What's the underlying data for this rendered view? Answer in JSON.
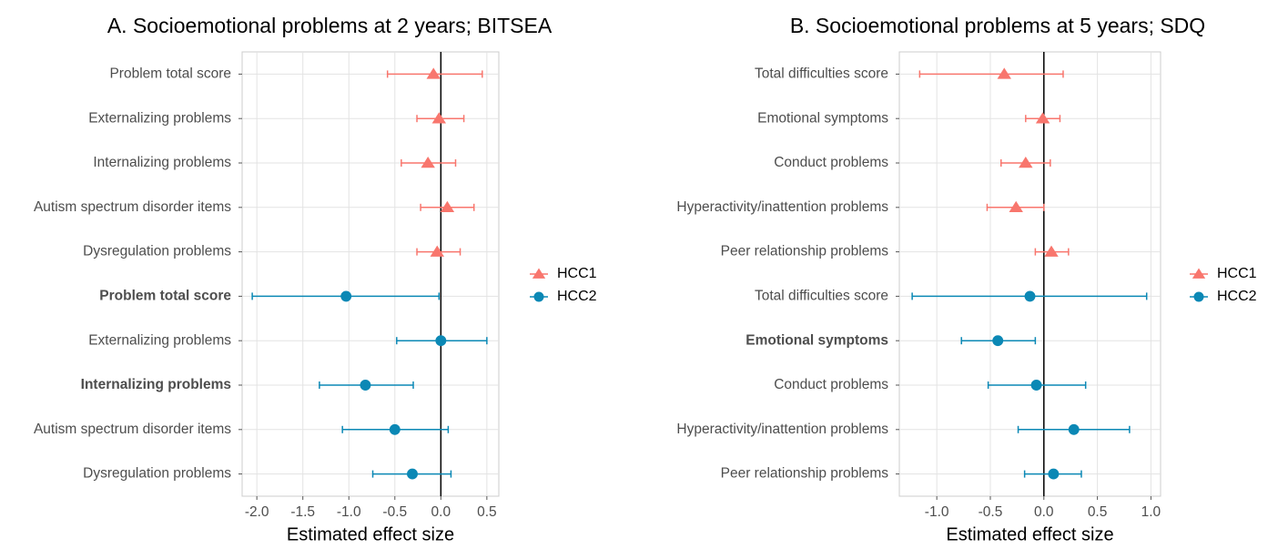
{
  "chart_data": [
    {
      "type": "forest",
      "title": "A. Socioemotional problems at 2 years; BITSEA",
      "x_label": "Estimated effect size",
      "categories": [
        "Problem total score",
        "Externalizing problems",
        "Internalizing problems",
        "Autism spectrum disorder items",
        "Dysregulation problems",
        "Problem total score",
        "Externalizing problems",
        "Internalizing problems",
        "Autism spectrum disorder items",
        "Dysregulation problems"
      ],
      "bold": [
        false,
        false,
        false,
        false,
        false,
        true,
        false,
        true,
        false,
        false
      ],
      "series": [
        {
          "name": "HCC1",
          "color": "#f8766d",
          "marker": "triangle",
          "values": [
            -0.08,
            -0.02,
            -0.14,
            0.07,
            -0.04,
            null,
            null,
            null,
            null,
            null
          ],
          "lower": [
            -0.58,
            -0.26,
            -0.43,
            -0.22,
            -0.26,
            null,
            null,
            null,
            null,
            null
          ],
          "upper": [
            0.45,
            0.25,
            0.16,
            0.36,
            0.21,
            null,
            null,
            null,
            null,
            null
          ]
        },
        {
          "name": "HCC2",
          "color": "#0b88b5",
          "marker": "circle",
          "values": [
            null,
            null,
            null,
            null,
            null,
            -1.03,
            0.0,
            -0.82,
            -0.5,
            -0.31
          ],
          "lower": [
            null,
            null,
            null,
            null,
            null,
            -2.05,
            -0.48,
            -1.32,
            -1.07,
            -0.74
          ],
          "upper": [
            null,
            null,
            null,
            null,
            null,
            -0.02,
            0.5,
            -0.3,
            0.08,
            0.11
          ]
        }
      ],
      "xlim": [
        -2.16,
        0.63
      ],
      "xticks": [
        {
          "value": -2,
          "label": "-2.0"
        },
        -1.5,
        {
          "value": -1,
          "label": "-1.0"
        },
        -0.5,
        {
          "value": 0,
          "label": "0.0"
        },
        0.5
      ],
      "reference_line": 0,
      "grid": true,
      "legend": "right"
    },
    {
      "type": "forest",
      "title": "B. Socioemotional problems at 5 years; SDQ",
      "x_label": "Estimated effect size",
      "categories": [
        "Total difficulties score",
        "Emotional symptoms",
        "Conduct problems",
        "Hyperactivity/inattention problems",
        "Peer relationship problems",
        "Total difficulties score",
        "Emotional symptoms",
        "Conduct problems",
        "Hyperactivity/inattention problems",
        "Peer relationship problems"
      ],
      "bold": [
        false,
        false,
        false,
        false,
        false,
        false,
        true,
        false,
        false,
        false
      ],
      "series": [
        {
          "name": "HCC1",
          "color": "#f8766d",
          "marker": "triangle",
          "values": [
            -0.37,
            -0.01,
            -0.17,
            -0.26,
            0.07,
            null,
            null,
            null,
            null,
            null
          ],
          "lower": [
            -1.16,
            -0.17,
            -0.4,
            -0.53,
            -0.08,
            null,
            null,
            null,
            null,
            null
          ],
          "upper": [
            0.18,
            0.15,
            0.06,
            0.0,
            0.23,
            null,
            null,
            null,
            null,
            null
          ]
        },
        {
          "name": "HCC2",
          "color": "#0b88b5",
          "marker": "circle",
          "values": [
            null,
            null,
            null,
            null,
            null,
            -0.13,
            -0.43,
            -0.07,
            0.28,
            0.09
          ],
          "lower": [
            null,
            null,
            null,
            null,
            null,
            -1.23,
            -0.77,
            -0.52,
            -0.24,
            -0.18
          ],
          "upper": [
            null,
            null,
            null,
            null,
            null,
            0.96,
            -0.08,
            0.39,
            0.8,
            0.35
          ]
        }
      ],
      "xlim": [
        -1.35,
        1.09
      ],
      "xticks": [
        {
          "value": -1,
          "label": "-1.0"
        },
        -0.5,
        {
          "value": 0,
          "label": "0.0"
        },
        0.5,
        {
          "value": 1,
          "label": "1.0"
        }
      ],
      "reference_line": 0,
      "grid": true,
      "legend": "right"
    }
  ]
}
